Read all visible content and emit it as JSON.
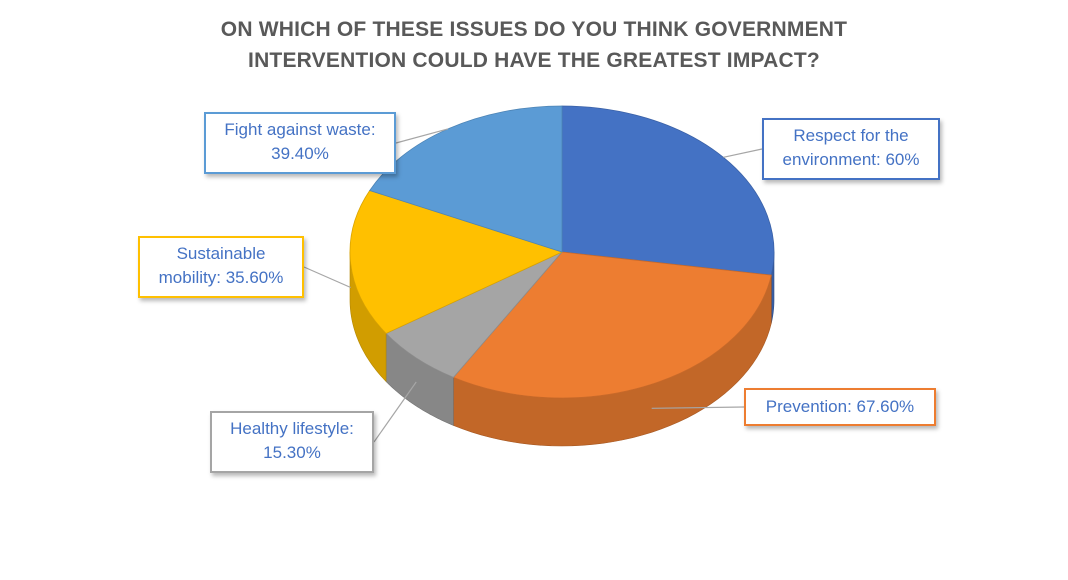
{
  "chart_data": {
    "type": "pie",
    "title_lines": [
      "ON WHICH OF THESE ISSUES DO YOU THINK GOVERNMENT",
      "INTERVENTION COULD HAVE THE GREATEST IMPACT?"
    ],
    "slices": [
      {
        "category": "Respect for the environment",
        "value": 60.0,
        "label_lines": [
          "Respect for the",
          "environment: 60%"
        ],
        "color": "#4472c4",
        "label_text_color": "#4472c4",
        "label_border_color": "#4472c4"
      },
      {
        "category": "Prevention",
        "value": 67.6,
        "label_lines": [
          "Prevention: 67.60%"
        ],
        "color": "#ed7d31",
        "label_text_color": "#4472c4",
        "label_border_color": "#ed7d31"
      },
      {
        "category": "Healthy lifestyle",
        "value": 15.3,
        "label_lines": [
          "Healthy lifestyle:",
          "15.30%"
        ],
        "color": "#a5a5a5",
        "label_text_color": "#4472c4",
        "label_border_color": "#a5a5a5"
      },
      {
        "category": "Sustainable mobility",
        "value": 35.6,
        "label_lines": [
          "Sustainable",
          "mobility: 35.60%"
        ],
        "color": "#ffc000",
        "label_text_color": "#4472c4",
        "label_border_color": "#ffc000"
      },
      {
        "category": "Fight against waste",
        "value": 39.4,
        "label_lines": [
          "Fight against waste:",
          "39.40%"
        ],
        "color": "#5b9bd5",
        "label_text_color": "#4472c4",
        "label_border_color": "#5b9bd5"
      }
    ],
    "style": "3d-pie",
    "title_color": "#595959",
    "leader_line_color": "#a6a6a6"
  }
}
